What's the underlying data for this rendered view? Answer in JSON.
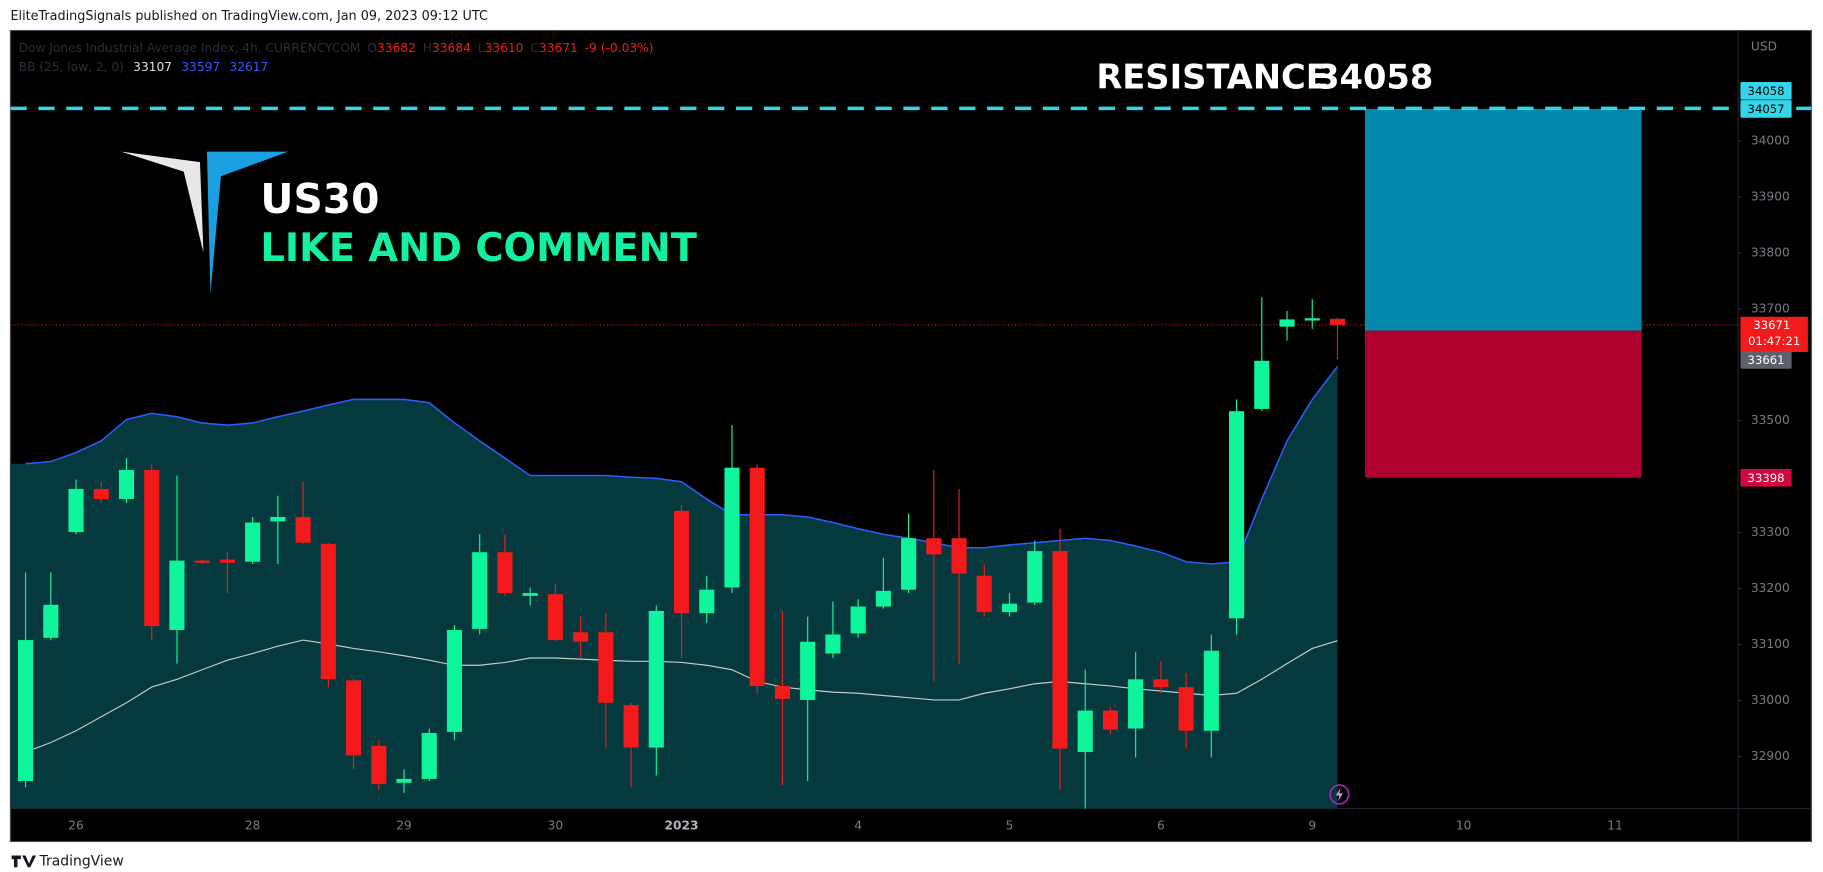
{
  "publisher": "EliteTradingSignals published on TradingView.com, Jan 09, 2023 09:12 UTC",
  "footer": "TradingView",
  "chart_data": {
    "type": "candlestick",
    "title": "Dow Jones Industrial Average Index, 4h, CURRENCYCOM",
    "ohlc_letters": [
      "O",
      "H",
      "L",
      "C"
    ],
    "change": "-9 (-0.03%)",
    "unit": "USD",
    "up_color": "#0ff59b",
    "down_color": "#f21a1a",
    "categories": [
      null,
      null,
      "26",
      null,
      null,
      null,
      null,
      null,
      null,
      "28",
      null,
      null,
      null,
      null,
      null,
      "29",
      null,
      null,
      null,
      null,
      null,
      "30",
      null,
      null,
      null,
      null,
      "2023",
      null,
      null,
      null,
      null,
      null,
      null,
      "4",
      null,
      null,
      null,
      null,
      null,
      "5",
      null,
      null,
      null,
      null,
      null,
      "6",
      null,
      null,
      null,
      null,
      null,
      "9",
      null,
      null,
      null,
      null,
      null,
      "10",
      null,
      null,
      null,
      null,
      null,
      "11",
      null,
      null,
      null,
      null,
      null
    ],
    "open": [
      32856,
      33112,
      33301,
      33378,
      33360,
      33412,
      33126,
      33250,
      33252,
      33248,
      33320,
      33328,
      33280,
      33036,
      32919,
      32853,
      32860,
      32944,
      33128,
      33265,
      33187,
      33190,
      33122,
      33122,
      32992,
      32916,
      33339,
      33156,
      33202,
      33416,
      33026,
      33001,
      33084,
      33120,
      33168,
      33198,
      33290,
      33290,
      33223,
      33158,
      33175,
      33267,
      32908,
      32982,
      32950,
      33038,
      33024,
      32946,
      33147,
      33521,
      33668,
      33679,
      33682,
      null,
      null,
      null,
      null,
      null,
      null,
      null,
      null,
      null,
      null,
      null,
      null,
      null,
      null,
      null,
      null
    ],
    "high": [
      33229,
      33229,
      33395,
      33391,
      33433,
      33422,
      33402,
      33252,
      33265,
      33328,
      33366,
      33391,
      33282,
      33038,
      32929,
      32877,
      32950,
      33135,
      33297,
      33297,
      33202,
      33208,
      33150,
      33156,
      32996,
      33170,
      33349,
      33223,
      33492,
      33422,
      33160,
      33150,
      33177,
      33181,
      33255,
      33334,
      33412,
      33378,
      33244,
      33192,
      33286,
      33307,
      33055,
      32988,
      33087,
      33070,
      33049,
      33118,
      33538,
      33721,
      33696,
      33717,
      33684,
      null,
      null,
      null,
      null,
      null,
      null,
      null,
      null,
      null,
      null,
      null,
      null,
      null,
      null,
      null,
      null
    ],
    "low": [
      32845,
      33108,
      33297,
      33353,
      33353,
      33108,
      33066,
      33244,
      33192,
      33244,
      33244,
      33280,
      33024,
      32877,
      32841,
      32835,
      32856,
      32929,
      33118,
      33187,
      33170,
      33106,
      33076,
      32914,
      32845,
      32866,
      33076,
      33139,
      33192,
      33013,
      32849,
      32856,
      33076,
      33112,
      33164,
      33192,
      33034,
      33066,
      33150,
      33150,
      33171,
      32841,
      32807,
      32940,
      32898,
      33013,
      32914,
      32898,
      33118,
      33517,
      33643,
      33664,
      33610,
      null,
      null,
      null,
      null,
      null,
      null,
      null,
      null,
      null,
      null,
      null,
      null,
      null,
      null,
      null,
      null
    ],
    "close": [
      33108,
      33171,
      33378,
      33360,
      33412,
      33133,
      33250,
      33246,
      33246,
      33318,
      33328,
      33282,
      33038,
      32902,
      32851,
      32860,
      32942,
      33126,
      33265,
      33192,
      33192,
      33108,
      33105,
      32996,
      32916,
      33160,
      33156,
      33198,
      33416,
      33026,
      33003,
      33105,
      33118,
      33168,
      33196,
      33290,
      33261,
      33227,
      33158,
      33173,
      33267,
      32914,
      32982,
      32948,
      33038,
      33024,
      32946,
      33089,
      33517,
      33607,
      33681,
      33683,
      33671,
      null,
      null,
      null,
      null,
      null,
      null,
      null,
      null,
      null,
      null,
      null,
      null,
      null,
      null,
      null,
      null
    ],
    "countdown": "01:47:21",
    "bb": {
      "name": "BB (25, low, 2, 0)",
      "upper_color": "#2f5bff",
      "basis_color": "#c8c8c8",
      "band_fill": "#06393d",
      "upper": [
        33423,
        33427,
        33443,
        33464,
        33502,
        33513,
        33507,
        33496,
        33492,
        33496,
        33507,
        33517,
        33528,
        33538,
        33538,
        33538,
        33532,
        33496,
        33464,
        33433,
        33402,
        33402,
        33402,
        33402,
        33399,
        33397,
        33391,
        33360,
        33332,
        33332,
        33332,
        33328,
        33318,
        33307,
        33297,
        33290,
        33282,
        33273,
        33273,
        33278,
        33282,
        33286,
        33290,
        33286,
        33276,
        33265,
        33248,
        33244,
        33248,
        33360,
        33464,
        33538,
        33597,
        null,
        null,
        null,
        null,
        null,
        null,
        null,
        null,
        null,
        null,
        null,
        null,
        null,
        null,
        null,
        null
      ],
      "basis": [
        32908,
        32925,
        32946,
        32971,
        32996,
        33024,
        33038,
        33055,
        33072,
        33084,
        33097,
        33108,
        33101,
        33093,
        33087,
        33080,
        33072,
        33063,
        33063,
        33068,
        33076,
        33076,
        33074,
        33072,
        33070,
        33070,
        33068,
        33063,
        33055,
        33034,
        33024,
        33019,
        33015,
        33013,
        33009,
        33005,
        33001,
        33001,
        33013,
        33021,
        33030,
        33034,
        33030,
        33026,
        33021,
        33017,
        33013,
        33009,
        33013,
        33038,
        33066,
        33093,
        33107,
        null,
        null,
        null,
        null,
        null,
        null,
        null,
        null,
        null,
        null,
        null,
        null,
        null,
        null,
        null,
        null
      ],
      "lower": 32617
    },
    "ylim": [
      32807,
      34195
    ],
    "yticks": [
      32900,
      33000,
      33100,
      33200,
      33300,
      33500,
      33700,
      33800,
      33900,
      34000
    ],
    "resistance": {
      "label": "RESISTANCE",
      "value": 34058,
      "color": "#33d6e8"
    },
    "position": {
      "target": 34057,
      "entry": 33661,
      "stop": 33398,
      "profit_color": "#0489ad",
      "loss_color": "#b0002f"
    },
    "annotations": [
      "US30",
      "LIKE AND COMMENT"
    ]
  }
}
